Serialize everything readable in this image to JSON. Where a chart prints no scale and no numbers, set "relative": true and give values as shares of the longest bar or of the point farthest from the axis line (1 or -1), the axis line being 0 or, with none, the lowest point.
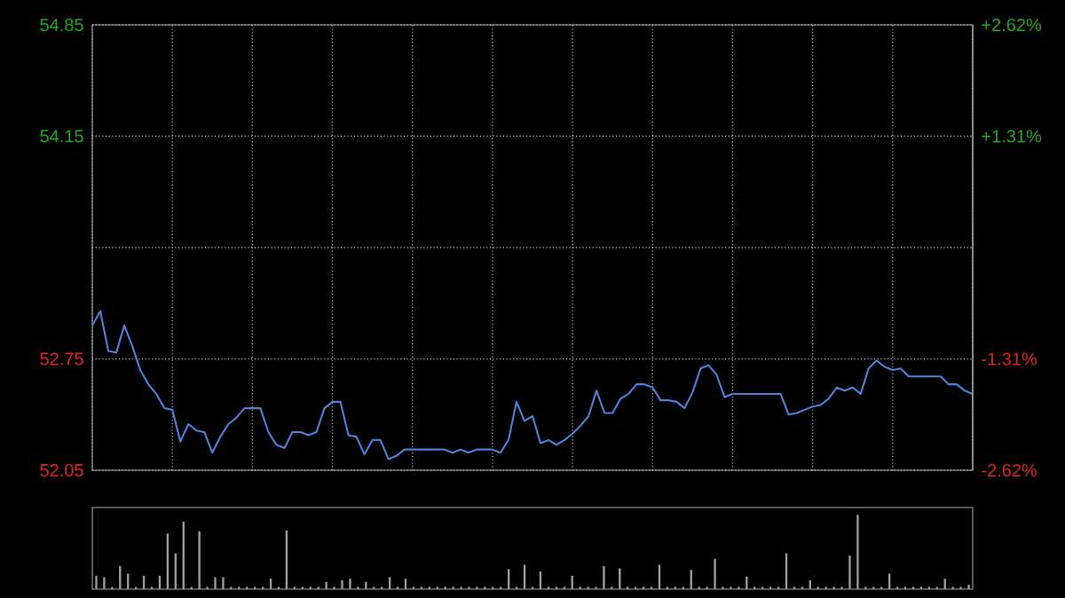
{
  "chart_data": [
    {
      "type": "line",
      "color": "#4a80d8",
      "categories": [
        null,
        null,
        null,
        null,
        null,
        null,
        null,
        null,
        null,
        null,
        null,
        null,
        null,
        null,
        null,
        null,
        null,
        null,
        null,
        null,
        null,
        null,
        null,
        null,
        null,
        null,
        null,
        null,
        null,
        null,
        null,
        null,
        null,
        null,
        null,
        null,
        null,
        null,
        null,
        null,
        null,
        null,
        null,
        null,
        null,
        null,
        null,
        null,
        null,
        null,
        null,
        null,
        null,
        null,
        null,
        null,
        null,
        null,
        null,
        null,
        null,
        null,
        null,
        null,
        null,
        null,
        null,
        null,
        null,
        null,
        null,
        null,
        null,
        null,
        null,
        null,
        null,
        null,
        null,
        null,
        null,
        null,
        null,
        null,
        null,
        null,
        null,
        null,
        null,
        null,
        null,
        null,
        null,
        null,
        null,
        null,
        null,
        null,
        null,
        null,
        null,
        null,
        null,
        null,
        null,
        null,
        null,
        null,
        null,
        null,
        null
      ],
      "ylim": [
        52.05,
        54.85
      ],
      "yticks": [
        52.05,
        52.75,
        {
          "value": 53.45,
          "label": null
        },
        54.15,
        54.85
      ],
      "y2lim": [
        -2.62,
        2.62
      ],
      "y2ticks": [
        {
          "value": -2.62,
          "label": "-2.62%"
        },
        {
          "value": -1.31,
          "label": "-1.31%"
        },
        {
          "value": 0,
          "label": null
        },
        {
          "value": 1.31,
          "label": "+1.31%"
        },
        {
          "value": 2.62,
          "label": "+2.62%"
        }
      ],
      "grid": true,
      "values": [
        52.96,
        53.05,
        52.8,
        52.79,
        52.96,
        52.83,
        52.68,
        52.59,
        52.53,
        52.44,
        52.43,
        52.23,
        52.34,
        52.3,
        52.29,
        52.16,
        52.26,
        52.34,
        52.38,
        52.44,
        52.44,
        52.44,
        52.29,
        52.21,
        52.19,
        52.29,
        52.29,
        52.27,
        52.29,
        52.44,
        52.48,
        52.48,
        52.27,
        52.26,
        52.15,
        52.24,
        52.24,
        52.12,
        52.14,
        52.18,
        52.18,
        52.18,
        52.18,
        52.18,
        52.18,
        52.16,
        52.18,
        52.16,
        52.18,
        52.18,
        52.18,
        52.16,
        52.24,
        52.48,
        52.36,
        52.39,
        52.22,
        52.24,
        52.21,
        52.24,
        52.28,
        52.33,
        52.39,
        52.55,
        52.41,
        52.41,
        52.5,
        52.53,
        52.59,
        52.59,
        52.57,
        52.49,
        52.49,
        52.48,
        52.44,
        52.54,
        52.69,
        52.71,
        52.65,
        52.51,
        52.53,
        52.53,
        52.53,
        52.53,
        52.53,
        52.53,
        52.53,
        52.4,
        52.41,
        52.43,
        52.45,
        52.46,
        52.5,
        52.57,
        52.55,
        52.57,
        52.53,
        52.69,
        52.74,
        52.7,
        52.68,
        52.69,
        52.64,
        52.64,
        52.64,
        52.64,
        52.64,
        52.59,
        52.59,
        52.55,
        52.53
      ]
    },
    {
      "type": "bar",
      "relative": true,
      "color": "#9a9a9a",
      "categories": [
        null,
        null,
        null,
        null,
        null,
        null,
        null,
        null,
        null,
        null,
        null,
        null,
        null,
        null,
        null,
        null,
        null,
        null,
        null,
        null,
        null,
        null,
        null,
        null,
        null,
        null,
        null,
        null,
        null,
        null,
        null,
        null,
        null,
        null,
        null,
        null,
        null,
        null,
        null,
        null,
        null,
        null,
        null,
        null,
        null,
        null,
        null,
        null,
        null,
        null,
        null,
        null,
        null,
        null,
        null,
        null,
        null,
        null,
        null,
        null,
        null,
        null,
        null,
        null,
        null,
        null,
        null,
        null,
        null,
        null,
        null,
        null,
        null,
        null,
        null,
        null,
        null,
        null,
        null,
        null,
        null,
        null,
        null,
        null,
        null,
        null,
        null,
        null,
        null,
        null,
        null,
        null,
        null,
        null,
        null,
        null,
        null,
        null,
        null,
        null,
        null,
        null,
        null,
        null,
        null,
        null,
        null,
        null,
        null,
        null,
        null
      ],
      "values": [
        0.18,
        0.16,
        0.03,
        0.31,
        0.21,
        0.03,
        0.18,
        0.03,
        0.18,
        0.75,
        0.48,
        0.91,
        0.03,
        0.78,
        0.03,
        0.16,
        0.16,
        0.03,
        0.03,
        0.03,
        0.03,
        0.03,
        0.14,
        0.03,
        0.79,
        0.03,
        0.03,
        0.03,
        0.03,
        0.1,
        0.03,
        0.12,
        0.14,
        0.03,
        0.1,
        0.03,
        0.03,
        0.16,
        0.03,
        0.14,
        0.03,
        0.03,
        0.03,
        0.03,
        0.03,
        0.03,
        0.03,
        0.03,
        0.03,
        0.03,
        0.03,
        0.03,
        0.27,
        0.03,
        0.33,
        0.03,
        0.24,
        0.03,
        0.03,
        0.03,
        0.18,
        0.03,
        0.03,
        0.03,
        0.31,
        0.03,
        0.28,
        0.03,
        0.03,
        0.03,
        0.03,
        0.33,
        0.03,
        0.03,
        0.03,
        0.26,
        0.03,
        0.03,
        0.41,
        0.03,
        0.03,
        0.03,
        0.17,
        0.03,
        0.03,
        0.03,
        0.03,
        0.48,
        0.03,
        0.03,
        0.12,
        0.03,
        0.03,
        0.03,
        0.03,
        0.45,
        1,
        0.03,
        0.03,
        0.03,
        0.21,
        0.03,
        0.03,
        0.03,
        0.03,
        0.03,
        0.03,
        0.14,
        0.03,
        0.03,
        0.06
      ]
    }
  ]
}
